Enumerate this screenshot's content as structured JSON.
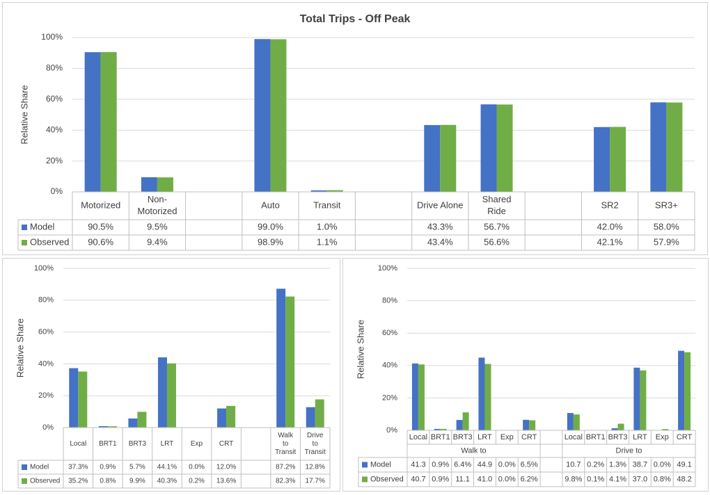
{
  "colors": {
    "model": "#4472C4",
    "observed": "#70AD47",
    "grid": "#d9d9d9",
    "border": "#bfbfbf"
  },
  "chart_data": [
    {
      "id": "top",
      "type": "bar",
      "title": "Total Trips - Off Peak",
      "ylabel": "Relative Share",
      "ylim": [
        0,
        100
      ],
      "yticks": [
        "0%",
        "20%",
        "40%",
        "60%",
        "80%",
        "100%"
      ],
      "grid": true,
      "legend": "data-table",
      "categories": [
        "Motorized",
        "Non-\nMotorized",
        "",
        "Auto",
        "Transit",
        "",
        "Drive  Alone",
        "Shared\nRide",
        "",
        "SR2",
        "SR3+"
      ],
      "series": [
        {
          "name": "Model",
          "values": [
            90.5,
            9.5,
            null,
            99.0,
            1.0,
            null,
            43.3,
            56.7,
            null,
            42.0,
            58.0
          ],
          "labels": [
            "90.5%",
            "9.5%",
            "",
            "99.0%",
            "1.0%",
            "",
            "43.3%",
            "56.7%",
            "",
            "42.0%",
            "58.0%"
          ]
        },
        {
          "name": "Observed",
          "values": [
            90.6,
            9.4,
            null,
            98.9,
            1.1,
            null,
            43.4,
            56.6,
            null,
            42.1,
            57.9
          ],
          "labels": [
            "90.6%",
            "9.4%",
            "",
            "98.9%",
            "1.1%",
            "",
            "43.4%",
            "56.6%",
            "",
            "42.1%",
            "57.9%"
          ]
        }
      ]
    },
    {
      "id": "bottom-left",
      "type": "bar",
      "title": "",
      "ylabel": "Relative Share",
      "ylim": [
        0,
        100
      ],
      "yticks": [
        "0%",
        "20%",
        "40%",
        "60%",
        "80%",
        "100%"
      ],
      "grid": true,
      "legend": "data-table",
      "categories": [
        "Local",
        "BRT1",
        "BRT3",
        "LRT",
        "Exp",
        "CRT",
        "",
        "Walk\nto\nTransit",
        "Drive\nto\nTransit"
      ],
      "series": [
        {
          "name": "Model",
          "values": [
            37.3,
            0.9,
            5.7,
            44.1,
            0.0,
            12.0,
            null,
            87.2,
            12.8
          ],
          "labels": [
            "37.3%",
            "0.9%",
            "5.7%",
            "44.1%",
            "0.0%",
            "12.0%",
            "",
            "87.2%",
            "12.8%"
          ]
        },
        {
          "name": "Observed",
          "values": [
            35.2,
            0.8,
            9.9,
            40.3,
            0.2,
            13.6,
            null,
            82.3,
            17.7
          ],
          "labels": [
            "35.2%",
            "0.8%",
            "9.9%",
            "40.3%",
            "0.2%",
            "13.6%",
            "",
            "82.3%",
            "17.7%"
          ]
        }
      ]
    },
    {
      "id": "bottom-right",
      "type": "bar",
      "title": "",
      "ylabel": "Relative Share",
      "ylim": [
        0,
        100
      ],
      "yticks": [
        "0%",
        "20%",
        "40%",
        "60%",
        "80%",
        "100%"
      ],
      "grid": true,
      "legend": "data-table",
      "categories": [
        "Local",
        "BRT1",
        "BRT3",
        "LRT",
        "Exp",
        "CRT",
        "",
        "Local",
        "BRT1",
        "BRT3",
        "LRT",
        "Exp",
        "CRT"
      ],
      "groups": [
        {
          "label": "Walk to",
          "start": 0,
          "end": 6
        },
        {
          "label": "Drive to",
          "start": 7,
          "end": 13
        }
      ],
      "series": [
        {
          "name": "Model",
          "values": [
            41.3,
            0.9,
            6.4,
            44.9,
            0.0,
            6.5,
            null,
            10.7,
            0.2,
            1.3,
            38.7,
            0.0,
            49.1
          ],
          "labels": [
            "41.3",
            "0.9%",
            "6.4%",
            "44.9",
            "0.0%",
            "6.5%",
            "",
            "10.7",
            "0.2%",
            "1.3%",
            "38.7",
            "0.0%",
            "49.1"
          ]
        },
        {
          "name": "Observed",
          "values": [
            40.7,
            0.9,
            11.1,
            41.0,
            0.0,
            6.2,
            null,
            9.8,
            0.1,
            4.1,
            37.0,
            0.8,
            48.2
          ],
          "labels": [
            "40.7",
            "0.9%",
            "11.1",
            "41.0",
            "0.0%",
            "6.2%",
            "",
            "9.8%",
            "0.1%",
            "4.1%",
            "37.0",
            "0.8%",
            "48.2"
          ]
        }
      ]
    }
  ]
}
